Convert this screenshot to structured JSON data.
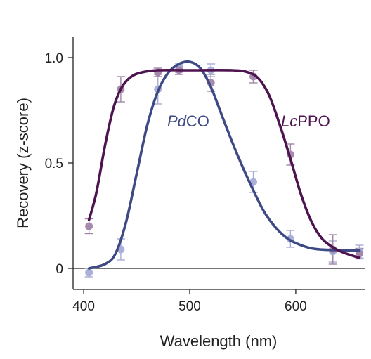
{
  "chart_data": {
    "type": "line",
    "xlabel": "Wavelength (nm)",
    "ylabel": "Recovery (z-score)",
    "xlim": [
      390,
      665
    ],
    "ylim": [
      -0.1,
      1.1
    ],
    "x_ticks": [
      {
        "value": 400,
        "label": "400"
      },
      {
        "value": 500,
        "label": "500"
      },
      {
        "value": 600,
        "label": "600"
      }
    ],
    "y_ticks": [
      {
        "value": 0,
        "label": "0"
      },
      {
        "value": 0.5,
        "label": "0.5"
      },
      {
        "value": 1.0,
        "label": "1.0"
      }
    ],
    "zero_line": true,
    "grid": false,
    "series": [
      {
        "name": "PdCO",
        "name_italic": "Pd",
        "name_rest": "CO",
        "color": "#3d4a86",
        "marker_color": "#a9acd6",
        "points": [
          {
            "x": 405,
            "y": -0.02,
            "err": 0.02
          },
          {
            "x": 435,
            "y": 0.09,
            "err": 0.05
          },
          {
            "x": 470,
            "y": 0.85,
            "err": 0.07
          },
          {
            "x": 490,
            "y": 0.95,
            "err": 0.02
          },
          {
            "x": 520,
            "y": 0.94,
            "err": 0.03
          },
          {
            "x": 560,
            "y": 0.41,
            "err": 0.05
          },
          {
            "x": 595,
            "y": 0.14,
            "err": 0.04
          },
          {
            "x": 635,
            "y": 0.08,
            "err": 0.05
          },
          {
            "x": 660,
            "y": 0.08,
            "err": 0.03
          }
        ],
        "curve": [
          {
            "x": 405,
            "y": 0.0
          },
          {
            "x": 420,
            "y": 0.02
          },
          {
            "x": 430,
            "y": 0.07
          },
          {
            "x": 440,
            "y": 0.22
          },
          {
            "x": 450,
            "y": 0.45
          },
          {
            "x": 460,
            "y": 0.68
          },
          {
            "x": 470,
            "y": 0.84
          },
          {
            "x": 480,
            "y": 0.93
          },
          {
            "x": 490,
            "y": 0.97
          },
          {
            "x": 500,
            "y": 0.98
          },
          {
            "x": 510,
            "y": 0.95
          },
          {
            "x": 520,
            "y": 0.86
          },
          {
            "x": 530,
            "y": 0.73
          },
          {
            "x": 540,
            "y": 0.6
          },
          {
            "x": 550,
            "y": 0.48
          },
          {
            "x": 560,
            "y": 0.37
          },
          {
            "x": 570,
            "y": 0.27
          },
          {
            "x": 580,
            "y": 0.2
          },
          {
            "x": 590,
            "y": 0.15
          },
          {
            "x": 600,
            "y": 0.12
          },
          {
            "x": 615,
            "y": 0.095
          },
          {
            "x": 630,
            "y": 0.088
          },
          {
            "x": 660,
            "y": 0.085
          }
        ]
      },
      {
        "name": "LcPPO",
        "name_italic": "Lc",
        "name_rest": "PPO",
        "color": "#4e1450",
        "marker_color": "#a285a8",
        "points": [
          {
            "x": 405,
            "y": 0.2,
            "err": 0.035
          },
          {
            "x": 435,
            "y": 0.85,
            "err": 0.06
          },
          {
            "x": 470,
            "y": 0.93,
            "err": 0.02
          },
          {
            "x": 490,
            "y": 0.94,
            "err": 0.02
          },
          {
            "x": 520,
            "y": 0.88,
            "err": 0.04
          },
          {
            "x": 560,
            "y": 0.91,
            "err": 0.03
          },
          {
            "x": 595,
            "y": 0.54,
            "err": 0.05
          },
          {
            "x": 635,
            "y": 0.09,
            "err": 0.07
          },
          {
            "x": 660,
            "y": 0.07,
            "err": 0.025
          }
        ],
        "curve": [
          {
            "x": 405,
            "y": 0.23
          },
          {
            "x": 412,
            "y": 0.36
          },
          {
            "x": 420,
            "y": 0.58
          },
          {
            "x": 428,
            "y": 0.76
          },
          {
            "x": 436,
            "y": 0.86
          },
          {
            "x": 445,
            "y": 0.91
          },
          {
            "x": 455,
            "y": 0.93
          },
          {
            "x": 470,
            "y": 0.94
          },
          {
            "x": 500,
            "y": 0.94
          },
          {
            "x": 540,
            "y": 0.94
          },
          {
            "x": 555,
            "y": 0.93
          },
          {
            "x": 565,
            "y": 0.9
          },
          {
            "x": 575,
            "y": 0.82
          },
          {
            "x": 585,
            "y": 0.68
          },
          {
            "x": 595,
            "y": 0.52
          },
          {
            "x": 605,
            "y": 0.35
          },
          {
            "x": 615,
            "y": 0.22
          },
          {
            "x": 625,
            "y": 0.14
          },
          {
            "x": 635,
            "y": 0.1
          },
          {
            "x": 645,
            "y": 0.075
          },
          {
            "x": 660,
            "y": 0.05
          }
        ]
      }
    ]
  }
}
